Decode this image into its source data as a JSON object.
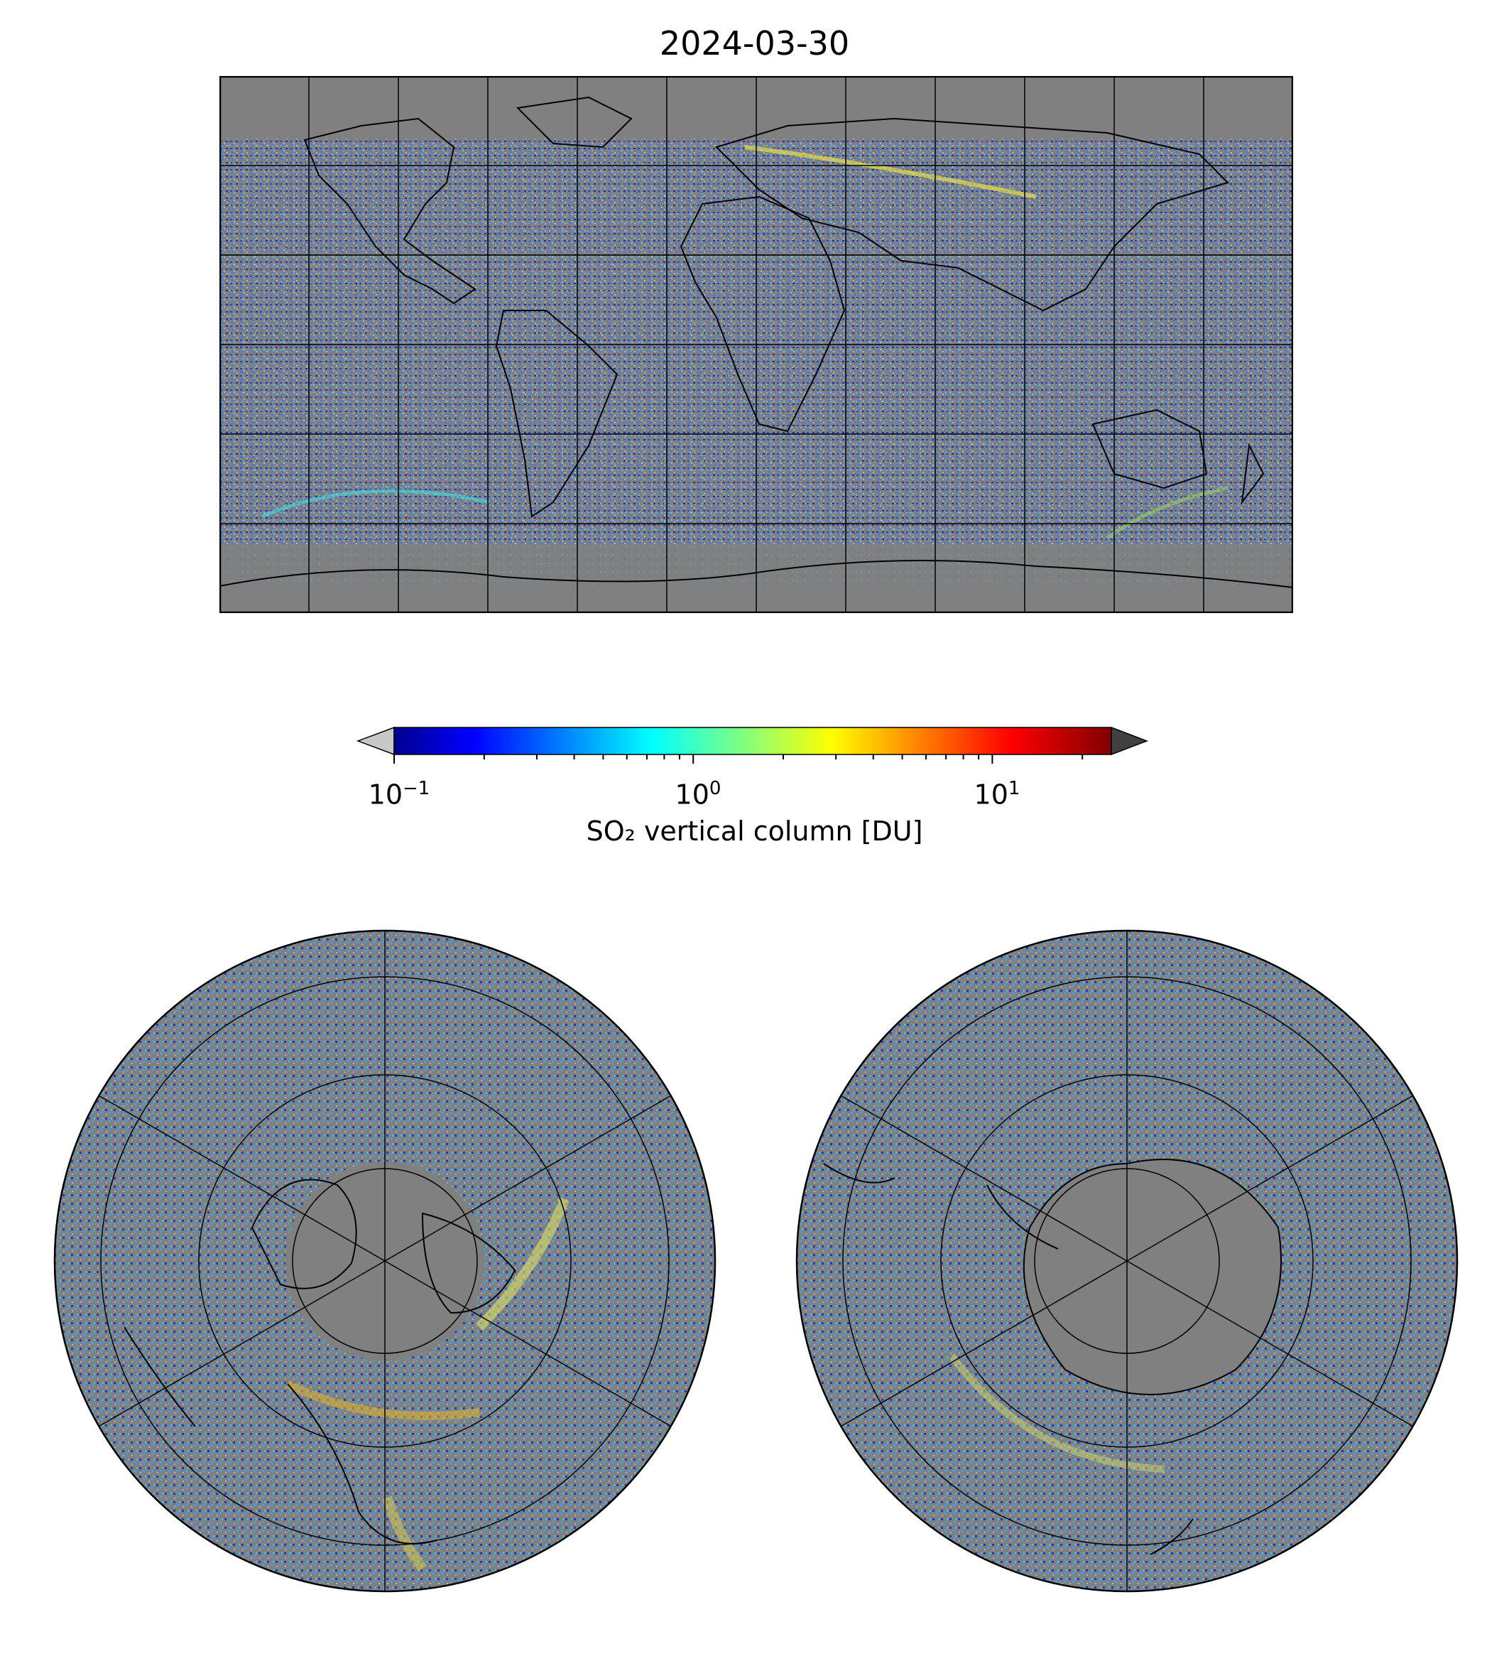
{
  "title": "2024-03-30",
  "colorbar": {
    "label": "SO₂ vertical column [DU]",
    "scale": "log",
    "vmin": 0.1,
    "vmax": 25,
    "ticks": [
      {
        "base": "10",
        "exp": "−1",
        "value": 0.1
      },
      {
        "base": "10",
        "exp": "0",
        "value": 1
      },
      {
        "base": "10",
        "exp": "1",
        "value": 10
      }
    ],
    "colormap": "jet",
    "under_color": "#c8c8c8",
    "over_color": "#404040"
  },
  "colors": {
    "no_data": "#808080",
    "coastline": "#000000",
    "gridline": "#000000",
    "low_value_speckle": "#b4b4b4"
  },
  "maps": [
    {
      "projection": "equirectangular",
      "extent": "global",
      "gridlines": true,
      "coastlines": true
    },
    {
      "projection": "orthographic",
      "center": "north pole",
      "gridlines": true,
      "coastlines": true
    },
    {
      "projection": "orthographic",
      "center": "south pole",
      "gridlines": true,
      "coastlines": true
    }
  ]
}
